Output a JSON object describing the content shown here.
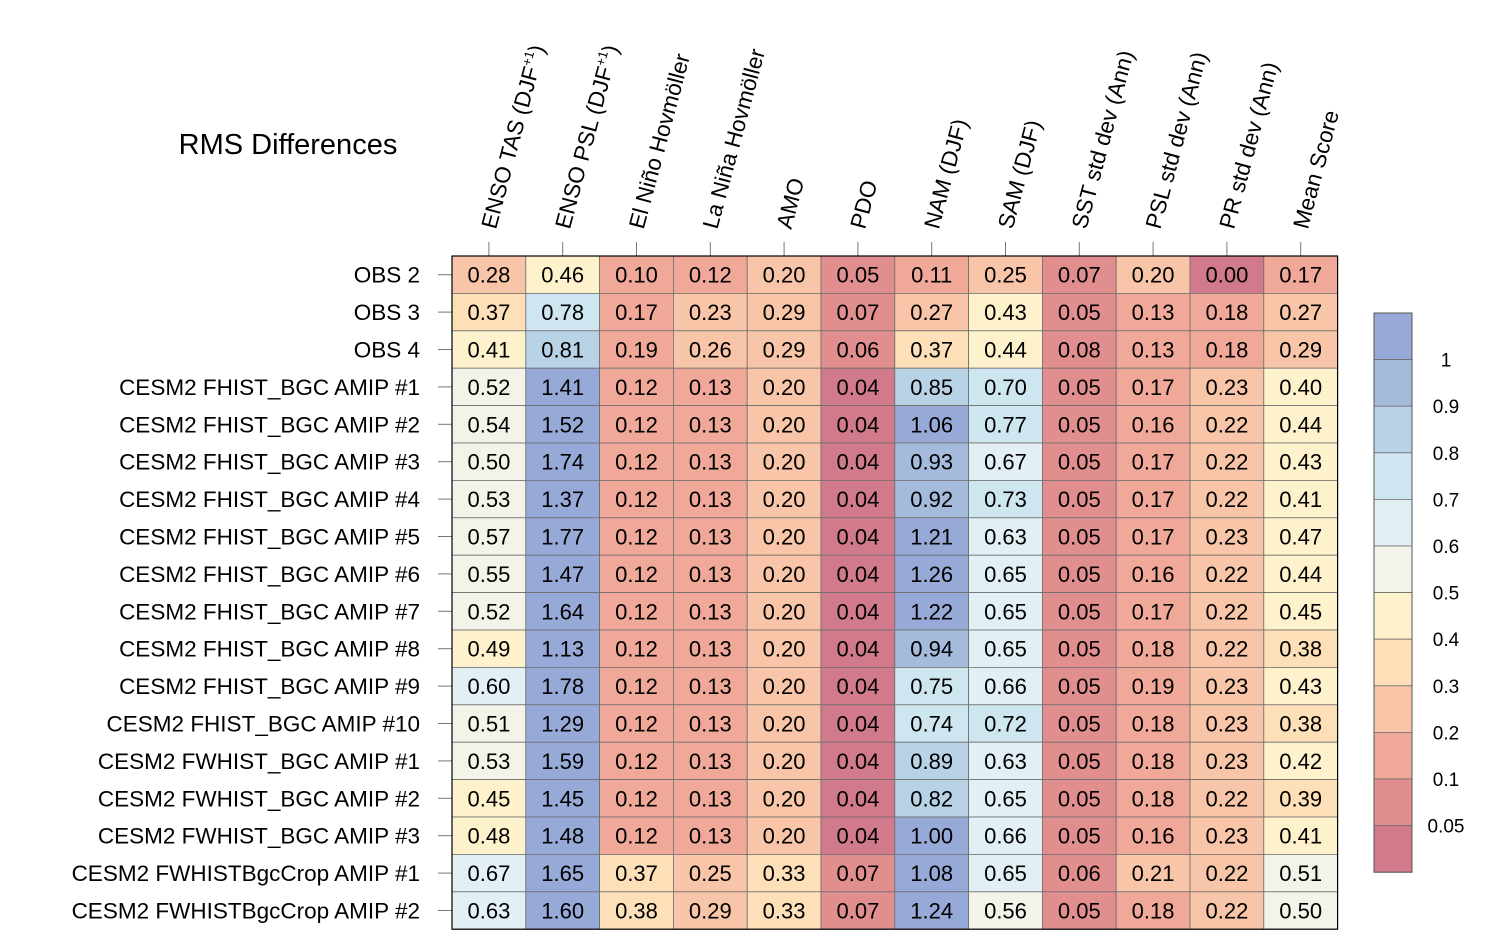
{
  "chart_data": {
    "type": "heatmap",
    "title": "RMS Differences",
    "columns": [
      {
        "label": "ENSO TAS (DJF",
        "sup": "+1",
        "tail": ")"
      },
      {
        "label": "ENSO PSL (DJF",
        "sup": "+1",
        "tail": ")"
      },
      {
        "label": "El Niño Hovmöller"
      },
      {
        "label": "La Niña Hovmöller"
      },
      {
        "label": "AMO"
      },
      {
        "label": "PDO"
      },
      {
        "label": "NAM (DJF)"
      },
      {
        "label": "SAM (DJF)"
      },
      {
        "label": "SST std dev (Ann)"
      },
      {
        "label": "PSL std dev (Ann)"
      },
      {
        "label": "PR std dev (Ann)"
      },
      {
        "label": "Mean Score"
      }
    ],
    "rows": [
      "OBS 2",
      "OBS 3",
      "OBS 4",
      "CESM2 FHIST_BGC AMIP #1",
      "CESM2 FHIST_BGC AMIP #2",
      "CESM2 FHIST_BGC AMIP #3",
      "CESM2 FHIST_BGC AMIP #4",
      "CESM2 FHIST_BGC AMIP #5",
      "CESM2 FHIST_BGC AMIP #6",
      "CESM2 FHIST_BGC AMIP #7",
      "CESM2 FHIST_BGC AMIP #8",
      "CESM2 FHIST_BGC AMIP #9",
      "CESM2 FHIST_BGC AMIP #10",
      "CESM2 FWHIST_BGC AMIP #1",
      "CESM2 FWHIST_BGC AMIP #2",
      "CESM2 FWHIST_BGC AMIP #3",
      "CESM2 FWHISTBgcCrop AMIP #1",
      "CESM2 FWHISTBgcCrop AMIP #2"
    ],
    "values": [
      [
        "0.28",
        "0.46",
        "0.10",
        "0.12",
        "0.20",
        "0.05",
        "0.11",
        "0.25",
        "0.07",
        "0.20",
        "0.00",
        "0.17"
      ],
      [
        "0.37",
        "0.78",
        "0.17",
        "0.23",
        "0.29",
        "0.07",
        "0.27",
        "0.43",
        "0.05",
        "0.13",
        "0.18",
        "0.27"
      ],
      [
        "0.41",
        "0.81",
        "0.19",
        "0.26",
        "0.29",
        "0.06",
        "0.37",
        "0.44",
        "0.08",
        "0.13",
        "0.18",
        "0.29"
      ],
      [
        "0.52",
        "1.41",
        "0.12",
        "0.13",
        "0.20",
        "0.04",
        "0.85",
        "0.70",
        "0.05",
        "0.17",
        "0.23",
        "0.40"
      ],
      [
        "0.54",
        "1.52",
        "0.12",
        "0.13",
        "0.20",
        "0.04",
        "1.06",
        "0.77",
        "0.05",
        "0.16",
        "0.22",
        "0.44"
      ],
      [
        "0.50",
        "1.74",
        "0.12",
        "0.13",
        "0.20",
        "0.04",
        "0.93",
        "0.67",
        "0.05",
        "0.17",
        "0.22",
        "0.43"
      ],
      [
        "0.53",
        "1.37",
        "0.12",
        "0.13",
        "0.20",
        "0.04",
        "0.92",
        "0.73",
        "0.05",
        "0.17",
        "0.22",
        "0.41"
      ],
      [
        "0.57",
        "1.77",
        "0.12",
        "0.13",
        "0.20",
        "0.04",
        "1.21",
        "0.63",
        "0.05",
        "0.17",
        "0.23",
        "0.47"
      ],
      [
        "0.55",
        "1.47",
        "0.12",
        "0.13",
        "0.20",
        "0.04",
        "1.26",
        "0.65",
        "0.05",
        "0.16",
        "0.22",
        "0.44"
      ],
      [
        "0.52",
        "1.64",
        "0.12",
        "0.13",
        "0.20",
        "0.04",
        "1.22",
        "0.65",
        "0.05",
        "0.17",
        "0.22",
        "0.45"
      ],
      [
        "0.49",
        "1.13",
        "0.12",
        "0.13",
        "0.20",
        "0.04",
        "0.94",
        "0.65",
        "0.05",
        "0.18",
        "0.22",
        "0.38"
      ],
      [
        "0.60",
        "1.78",
        "0.12",
        "0.13",
        "0.20",
        "0.04",
        "0.75",
        "0.66",
        "0.05",
        "0.19",
        "0.23",
        "0.43"
      ],
      [
        "0.51",
        "1.29",
        "0.12",
        "0.13",
        "0.20",
        "0.04",
        "0.74",
        "0.72",
        "0.05",
        "0.18",
        "0.23",
        "0.38"
      ],
      [
        "0.53",
        "1.59",
        "0.12",
        "0.13",
        "0.20",
        "0.04",
        "0.89",
        "0.63",
        "0.05",
        "0.18",
        "0.23",
        "0.42"
      ],
      [
        "0.45",
        "1.45",
        "0.12",
        "0.13",
        "0.20",
        "0.04",
        "0.82",
        "0.65",
        "0.05",
        "0.18",
        "0.22",
        "0.39"
      ],
      [
        "0.48",
        "1.48",
        "0.12",
        "0.13",
        "0.20",
        "0.04",
        "1.00",
        "0.66",
        "0.05",
        "0.16",
        "0.23",
        "0.41"
      ],
      [
        "0.67",
        "1.65",
        "0.37",
        "0.25",
        "0.33",
        "0.07",
        "1.08",
        "0.65",
        "0.06",
        "0.21",
        "0.22",
        "0.51"
      ],
      [
        "0.63",
        "1.60",
        "0.38",
        "0.29",
        "0.33",
        "0.07",
        "1.24",
        "0.56",
        "0.05",
        "0.18",
        "0.22",
        "0.50"
      ]
    ],
    "colorbar": {
      "levels": [
        0.05,
        0.1,
        0.2,
        0.3,
        0.4,
        0.5,
        0.6,
        0.7,
        0.8,
        0.9,
        1
      ],
      "labels": [
        "0.05",
        "0.1",
        "0.2",
        "0.3",
        "0.4",
        "0.5",
        "0.6",
        "0.7",
        "0.8",
        "0.9",
        "1"
      ],
      "colors": [
        "#d07a8b",
        "#e08e8e",
        "#f0a899",
        "#f9c5a8",
        "#fde0b8",
        "#fef2cc",
        "#f3f3ea",
        "#e2eff5",
        "#cde6ef",
        "#b8d2e6",
        "#a4bbdc",
        "#97a9d6"
      ],
      "position": "right"
    }
  }
}
